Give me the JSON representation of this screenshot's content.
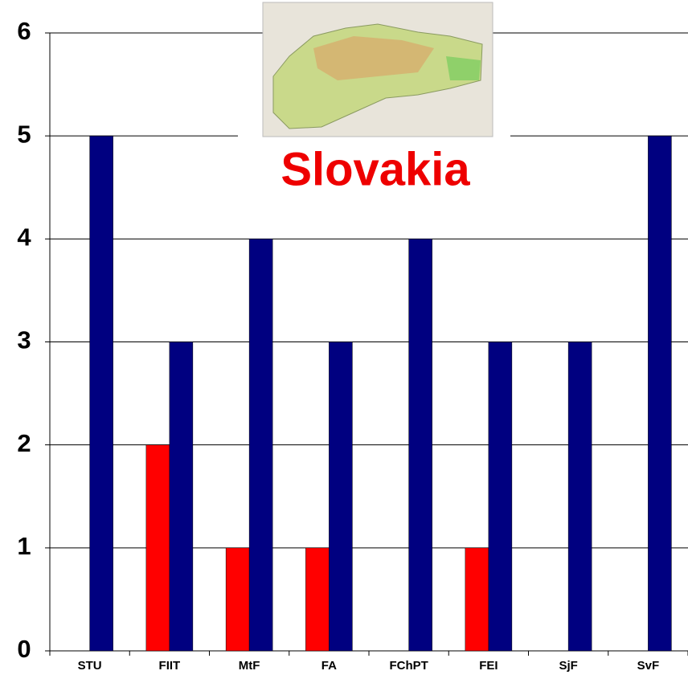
{
  "chart_data": {
    "type": "bar",
    "title": "Slovakia",
    "categories": [
      "STU",
      "FIIT",
      "MtF",
      "FA",
      "FChPT",
      "FEI",
      "SjF",
      "SvF"
    ],
    "series": [
      {
        "color": "#ff0000",
        "values": [
          0,
          2,
          1,
          1,
          0,
          1,
          0,
          0
        ]
      },
      {
        "color": "#000080",
        "values": [
          5,
          3,
          4,
          3,
          4,
          3,
          3,
          5
        ]
      }
    ],
    "ylim": [
      0,
      6
    ],
    "yticks": [
      0,
      1,
      2,
      3,
      4,
      5,
      6
    ],
    "grid": true
  }
}
